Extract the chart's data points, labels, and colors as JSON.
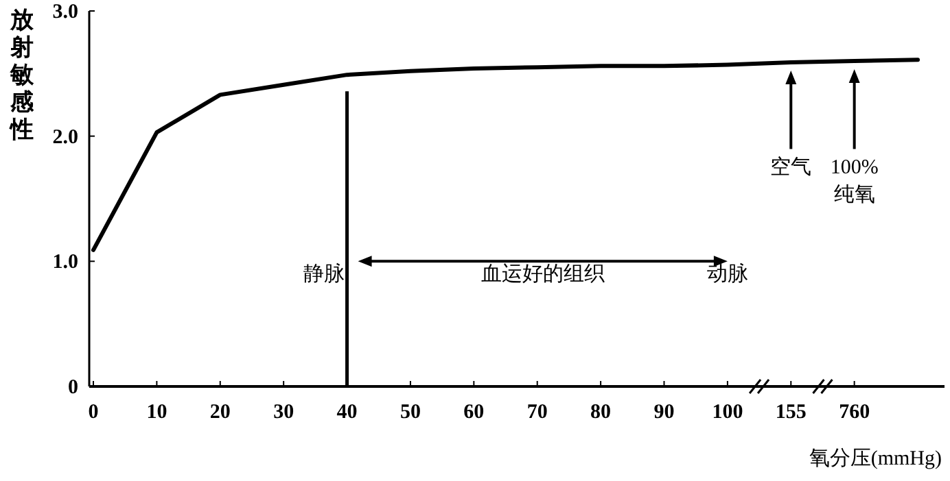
{
  "chart_data": {
    "type": "line",
    "ylabel": "放射敏感性",
    "xlabel": "氧分压(mmHg)",
    "categories": [
      "0",
      "10",
      "20",
      "30",
      "40",
      "50",
      "60",
      "70",
      "80",
      "90",
      "100",
      "155",
      "760",
      null
    ],
    "series": [
      {
        "color": "#000000",
        "values": [
          1.09,
          2.03,
          2.33,
          2.41,
          2.49,
          2.52,
          2.54,
          2.55,
          2.56,
          2.56,
          2.57,
          2.59,
          2.6,
          2.61
        ]
      }
    ],
    "ylim": [
      0,
      3
    ],
    "yticks": [
      0,
      {
        "value": 1,
        "label": "1.0"
      },
      {
        "value": 2,
        "label": "2.0"
      },
      {
        "value": 3,
        "label": "3.0"
      }
    ],
    "line_style": "solid",
    "annotations": [
      "静脉",
      "血运好的组织",
      "动脉",
      "空气",
      "100%\n纯氧"
    ]
  }
}
